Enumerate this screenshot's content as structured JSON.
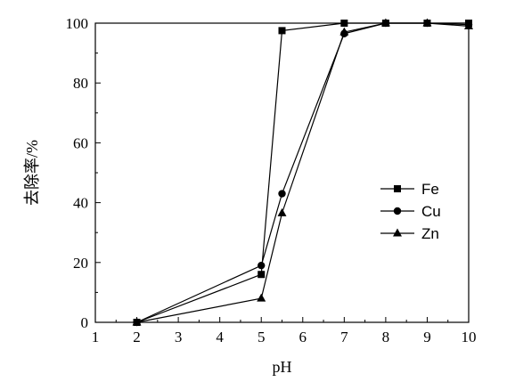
{
  "chart_data": {
    "type": "line",
    "title": "",
    "xlabel": "pH",
    "ylabel": "去除率/%",
    "xlim": [
      1,
      10
    ],
    "ylim": [
      0,
      100
    ],
    "xticks": [
      1,
      2,
      3,
      4,
      5,
      6,
      7,
      8,
      9,
      10
    ],
    "yticks": [
      0,
      20,
      40,
      60,
      80,
      100
    ],
    "grid": false,
    "legend_position": "right-middle",
    "series": [
      {
        "name": "Fe",
        "marker": "square",
        "x": [
          2,
          5,
          5.5,
          7,
          8,
          9,
          10
        ],
        "y": [
          0,
          16,
          97.5,
          100,
          100,
          100,
          100
        ]
      },
      {
        "name": "Cu",
        "marker": "circle",
        "x": [
          2,
          5,
          5.5,
          7,
          8,
          9,
          10
        ],
        "y": [
          0,
          19,
          43,
          96.5,
          100,
          100,
          99.5
        ]
      },
      {
        "name": "Zn",
        "marker": "triangle",
        "x": [
          2,
          5,
          5.5,
          7,
          8,
          9,
          10
        ],
        "y": [
          0,
          8,
          36.5,
          97,
          100,
          100,
          99
        ]
      }
    ]
  }
}
